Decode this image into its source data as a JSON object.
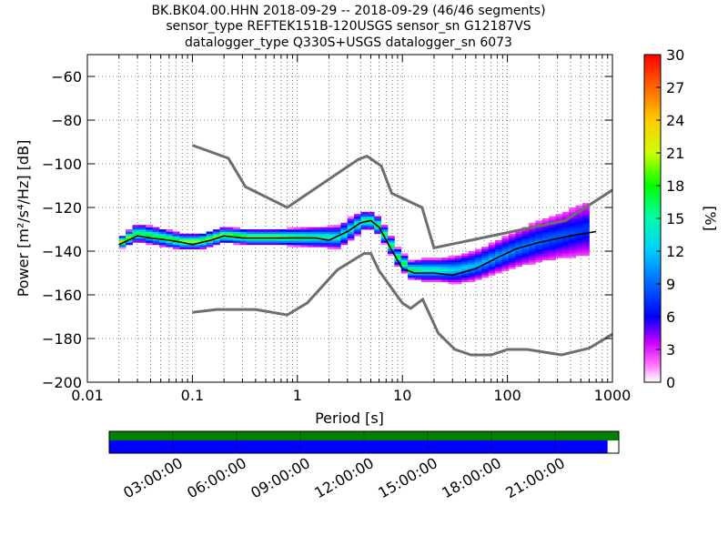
{
  "title": {
    "line1": "BK.BK04.00.HHN   2018-09-29 -- 2018-09-29  (46/46 segments)",
    "line2": "sensor_type REFTEK151B-120USGS sensor_sn G12187VS",
    "line3": "datalogger_type Q330S+USGS datalogger_sn 6073"
  },
  "chart_data": {
    "type": "heatmap",
    "xlabel": "Period [s]",
    "ylabel": "Power [m²/s⁴/Hz] [dB]",
    "x_scale": "log",
    "xlim": [
      0.01,
      1000
    ],
    "ylim": [
      -200,
      -50
    ],
    "x_ticks": [
      0.01,
      0.1,
      1,
      10,
      100,
      1000
    ],
    "x_tick_labels": [
      "0.01",
      "0.1",
      "1",
      "10",
      "100",
      "1000"
    ],
    "y_ticks": [
      -200,
      -180,
      -160,
      -140,
      -120,
      -100,
      -80,
      -60
    ],
    "y_tick_labels": [
      "−200",
      "−180",
      "−160",
      "−140",
      "−120",
      "−100",
      "−80",
      "−60"
    ],
    "grid": "dotted",
    "colorbar": {
      "label": "[%]",
      "range": [
        0,
        30
      ],
      "ticks": [
        0,
        3,
        6,
        9,
        12,
        15,
        18,
        21,
        24,
        27,
        30
      ]
    },
    "noise_models": [
      {
        "name": "high_noise_model",
        "x": [
          0.1,
          0.22,
          0.32,
          0.8,
          3.8,
          4.6,
          6.3,
          7.9,
          15.4,
          20,
          354.8,
          1000
        ],
        "y": [
          -91.5,
          -97.4,
          -110.5,
          -120,
          -98,
          -96.5,
          -101,
          -113.5,
          -120,
          -138.5,
          -126,
          -112
        ]
      },
      {
        "name": "low_noise_model",
        "x": [
          0.1,
          0.17,
          0.4,
          0.8,
          1.24,
          2.4,
          4.3,
          5,
          6,
          10,
          12,
          15.6,
          21.9,
          31.6,
          45,
          70,
          101,
          154,
          328,
          600,
          1000
        ],
        "y": [
          -168,
          -166.7,
          -166.7,
          -169.2,
          -163.7,
          -148.6,
          -141.1,
          -141.1,
          -149,
          -163.8,
          -166.2,
          -162.1,
          -177.5,
          -185,
          -187.5,
          -187.5,
          -185,
          -185,
          -187.5,
          -184.4,
          -178
        ]
      }
    ],
    "median_curve": {
      "x": [
        0.02,
        0.03,
        0.04,
        0.06,
        0.08,
        0.1,
        0.15,
        0.2,
        0.3,
        0.5,
        0.8,
        1,
        1.5,
        2,
        3,
        4,
        5,
        6,
        8,
        10,
        13,
        20,
        30,
        50,
        80,
        120,
        200,
        400,
        700
      ],
      "y": [
        -137,
        -133,
        -134,
        -135,
        -136,
        -137,
        -135,
        -133,
        -134,
        -134,
        -134,
        -134,
        -134,
        -135,
        -131,
        -127,
        -126,
        -129,
        -140,
        -148,
        -150,
        -150,
        -151,
        -148,
        -143,
        -139,
        -136,
        -133,
        -131
      ]
    },
    "band": {
      "x": [
        0.02,
        0.03,
        0.05,
        0.08,
        0.12,
        0.2,
        0.35,
        0.6,
        1,
        1.5,
        2.5,
        3.5,
        4.5,
        5.5,
        7,
        9,
        12,
        16,
        22,
        32,
        50,
        80,
        130,
        200,
        350,
        600
      ],
      "center": [
        -137,
        -132,
        -134,
        -136,
        -136,
        -133,
        -134,
        -134,
        -134,
        -134,
        -134,
        -129,
        -126,
        -127,
        -134,
        -143,
        -149,
        -149,
        -149,
        -149,
        -147,
        -143,
        -139,
        -136,
        -133,
        -130
      ],
      "half_width": [
        2.5,
        4,
        4,
        3.5,
        3.5,
        3.5,
        3.5,
        3.5,
        4,
        4.5,
        5,
        5,
        4,
        4,
        4,
        4,
        4,
        5,
        5,
        6,
        6.5,
        7,
        8,
        9,
        10,
        12
      ]
    },
    "timeline": {
      "ticks": [
        "03:00:00",
        "06:00:00",
        "09:00:00",
        "12:00:00",
        "15:00:00",
        "18:00:00",
        "21:00:00"
      ],
      "data_coverage_fraction": 1.0,
      "psd_coverage_fraction": 0.978,
      "colors": {
        "data": "#008000",
        "psd": "#0000ff"
      }
    }
  }
}
